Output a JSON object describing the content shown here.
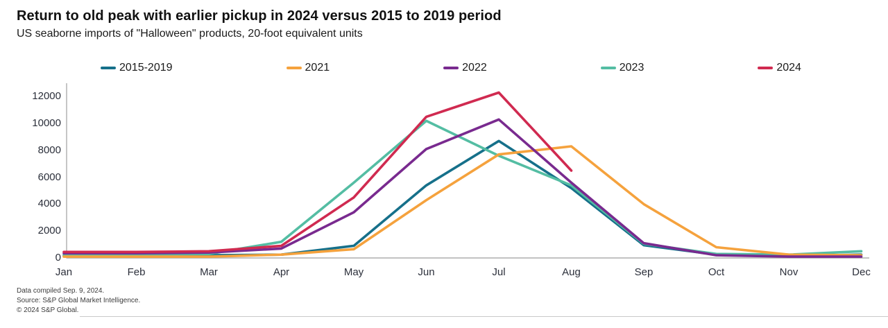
{
  "title": "Return to old peak with earlier pickup in 2024 versus 2015 to 2019 period",
  "subtitle": "US seaborne imports of \"Halloween\" products, 20-foot equivalent units",
  "footer": {
    "line1": "Data compiled Sep. 9, 2024.",
    "line2": "Source: S&P Global Market Intelligence.",
    "line3": "© 2024 S&P Global."
  },
  "chart_data": {
    "type": "line",
    "title": "Return to old peak with earlier pickup in 2024 versus 2015 to 2019 period",
    "subtitle": "US seaborne imports of \"Halloween\" products, 20-foot equivalent units",
    "categories": [
      "Jan",
      "Feb",
      "Mar",
      "Apr",
      "May",
      "Jun",
      "Jul",
      "Aug",
      "Sep",
      "Oct",
      "Nov",
      "Dec"
    ],
    "xlabel": "",
    "ylabel": "",
    "ylim": [
      0,
      12000
    ],
    "y_ticks": [
      0,
      2000,
      4000,
      6000,
      8000,
      10000,
      12000
    ],
    "grid": false,
    "legend_position": "top",
    "axis_color": "#adadad",
    "tick_label_color": "#2b2f3a",
    "series": [
      {
        "name": "2015-2019",
        "color": "#16708a",
        "values": [
          150,
          150,
          200,
          250,
          900,
          5400,
          8700,
          5200,
          950,
          250,
          150,
          250
        ]
      },
      {
        "name": "2021",
        "color": "#f5a23d",
        "values": [
          100,
          100,
          100,
          250,
          650,
          4300,
          7700,
          8300,
          4000,
          800,
          250,
          200
        ]
      },
      {
        "name": "2022",
        "color": "#792a8f",
        "values": [
          350,
          350,
          400,
          700,
          3400,
          8100,
          10300,
          5600,
          1100,
          200,
          100,
          100
        ]
      },
      {
        "name": "2023",
        "color": "#54bda3",
        "values": [
          250,
          250,
          300,
          1200,
          5600,
          10200,
          7600,
          5400,
          1050,
          300,
          250,
          500
        ]
      },
      {
        "name": "2024",
        "color": "#d02a50",
        "values": [
          450,
          450,
          500,
          900,
          4500,
          10500,
          12300,
          6500,
          null,
          null,
          null,
          null
        ]
      }
    ]
  }
}
